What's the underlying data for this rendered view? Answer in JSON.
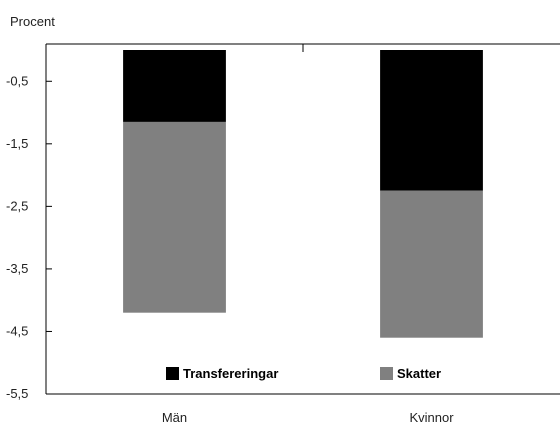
{
  "chart_data": {
    "type": "bar",
    "stacked": true,
    "ylabel": "Procent",
    "categories": [
      "Män",
      "Kvinnor"
    ],
    "ylim": [
      -5.5,
      0.0
    ],
    "ytick_values": [
      -0.5,
      -1.5,
      -2.5,
      -3.5,
      -4.5,
      -5.5
    ],
    "ytick_labels": [
      "-0,5",
      "-1,5",
      "-2,5",
      "-3,5",
      "-4,5",
      "-5,5"
    ],
    "series": [
      {
        "name": "Transfereringar",
        "values": [
          -1.15,
          -2.25
        ],
        "color": "#000000"
      },
      {
        "name": "Skatter",
        "values": [
          -3.05,
          -2.35
        ],
        "color": "#808080"
      }
    ],
    "legend": {
      "placement": "bottom-inside"
    },
    "grid": false
  }
}
